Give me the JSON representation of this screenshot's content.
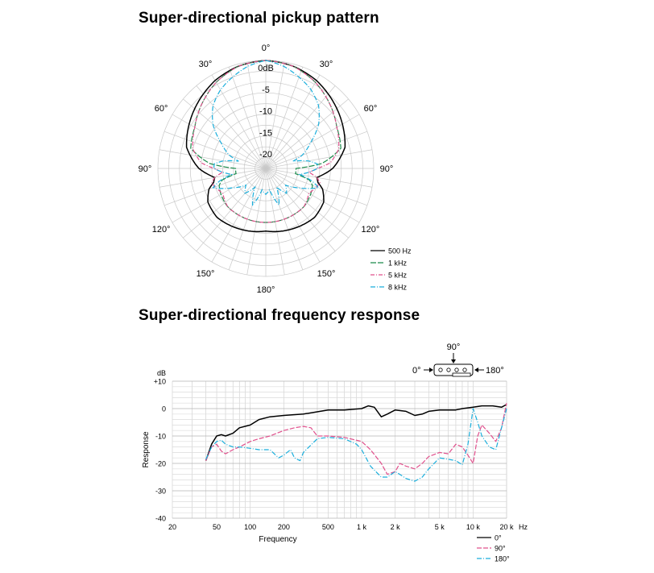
{
  "polar": {
    "title": "Super-directional pickup pattern",
    "angle_labels": [
      "0°",
      "30°",
      "60°",
      "90°",
      "120°",
      "150°",
      "180°",
      "150°",
      "120°",
      "90°",
      "60°",
      "30°"
    ],
    "ring_labels": [
      "0dB",
      "-5",
      "-10",
      "-15",
      "-20"
    ],
    "legend": [
      {
        "label": "500 Hz",
        "color": "#000000",
        "dash": ""
      },
      {
        "label": "1 kHz",
        "color": "#1a8a4a",
        "dash": "7 2"
      },
      {
        "label": "5 kHz",
        "color": "#e0508c",
        "dash": "5 2 1 2"
      },
      {
        "label": "8 kHz",
        "color": "#1aaedc",
        "dash": "6 2 1 2"
      }
    ]
  },
  "freq": {
    "title": "Super-directional frequency response",
    "unit_label": "dB",
    "ylabel": "Response",
    "xlabel": "Frequency",
    "x_unit": "Hz",
    "y_ticks": [
      "+10",
      "0",
      "-10",
      "-20",
      "-30",
      "-40"
    ],
    "x_ticks": [
      "20",
      "50",
      "100",
      "200",
      "500",
      "1 k",
      "2 k",
      "5 k",
      "10 k",
      "20 k"
    ],
    "mic_diagram": {
      "top_label": "90°",
      "left_label": "0°",
      "right_label": "180°"
    },
    "legend": [
      {
        "label": "0°",
        "color": "#000000",
        "dash": ""
      },
      {
        "label": "90°",
        "color": "#e0508c",
        "dash": "6 2"
      },
      {
        "label": "180°",
        "color": "#1aaedc",
        "dash": "6 2 1 2"
      }
    ]
  },
  "chart_data": [
    {
      "type": "polar",
      "title": "Super-directional pickup pattern",
      "angle_unit": "degrees",
      "radial_range_db": [
        -25,
        0
      ],
      "radial_ticks_db": [
        0,
        -5,
        -10,
        -15,
        -20
      ],
      "series": [
        {
          "name": "500 Hz",
          "angles": [
            0,
            15,
            30,
            45,
            60,
            75,
            90,
            100,
            105,
            110,
            120,
            135,
            150,
            165,
            180
          ],
          "db": [
            0,
            -0.5,
            -1.5,
            -3,
            -4.5,
            -6,
            -9.5,
            -13,
            -12.5,
            -11,
            -9.5,
            -9,
            -9.5,
            -10,
            -10.5
          ]
        },
        {
          "name": "1 kHz",
          "angles": [
            0,
            15,
            30,
            45,
            60,
            75,
            85,
            90,
            100,
            105,
            110,
            120,
            135,
            150,
            165,
            180
          ],
          "db": [
            0,
            -0.5,
            -2,
            -4,
            -6,
            -7,
            -12,
            -18,
            -18,
            -14.5,
            -13.5,
            -13,
            -12.5,
            -12.5,
            -12.5,
            -12.5
          ]
        },
        {
          "name": "5 kHz",
          "angles": [
            0,
            15,
            30,
            45,
            60,
            75,
            85,
            90,
            95,
            100,
            105,
            110,
            120,
            135,
            150,
            165,
            180
          ],
          "db": [
            0,
            -0.5,
            -2,
            -4,
            -6,
            -7.5,
            -10,
            -13,
            -15,
            -13,
            -12,
            -12.5,
            -13.5,
            -12.5,
            -12.5,
            -12.5,
            -12.5
          ]
        },
        {
          "name": "8 kHz",
          "angles": [
            0,
            10,
            20,
            30,
            40,
            50,
            60,
            70,
            75,
            80,
            85,
            90,
            95,
            100,
            105,
            110,
            115,
            120,
            130,
            140,
            150,
            160,
            170,
            180
          ],
          "db": [
            0,
            -1,
            -2.5,
            -4,
            -6,
            -9,
            -13,
            -16,
            -18.5,
            -15,
            -13,
            -13,
            -15,
            -17,
            -14,
            -12,
            -14,
            -16,
            -19,
            -17.5,
            -20,
            -16,
            -20,
            -19
          ]
        }
      ]
    },
    {
      "type": "line",
      "title": "Super-directional frequency response",
      "xlabel": "Frequency",
      "ylabel": "Response",
      "x_unit": "Hz",
      "y_unit": "dB",
      "x_scale": "log",
      "xlim": [
        20,
        20000
      ],
      "ylim": [
        -40,
        10
      ],
      "grid": true,
      "legend_position": "bottom-right",
      "series": [
        {
          "name": "0°",
          "x": [
            40,
            45,
            50,
            55,
            60,
            70,
            80,
            100,
            120,
            150,
            200,
            300,
            500,
            700,
            1000,
            1150,
            1300,
            1500,
            1700,
            2000,
            2500,
            3000,
            3500,
            4000,
            5000,
            6000,
            7000,
            8000,
            10000,
            12000,
            15000,
            18000,
            20000
          ],
          "y": [
            -19,
            -13,
            -10,
            -9.5,
            -10,
            -9,
            -7,
            -6,
            -4,
            -3,
            -2.5,
            -2,
            -0.5,
            -0.5,
            0,
            1,
            0.5,
            -3,
            -2,
            -0.5,
            -1,
            -2.5,
            -2,
            -1,
            -0.5,
            -0.5,
            -0.5,
            0,
            0.5,
            1,
            1,
            0.5,
            1.5
          ]
        },
        {
          "name": "90°",
          "x": [
            40,
            45,
            50,
            55,
            60,
            70,
            80,
            100,
            120,
            150,
            200,
            250,
            300,
            350,
            400,
            500,
            700,
            1000,
            1200,
            1500,
            1700,
            2000,
            2200,
            2500,
            3000,
            3500,
            4000,
            5000,
            6000,
            7000,
            8000,
            9000,
            10000,
            11000,
            12000,
            14000,
            16000,
            18000,
            20000
          ],
          "y": [
            -19,
            -14,
            -13,
            -15.5,
            -16.5,
            -15,
            -14,
            -12,
            -11,
            -10,
            -8,
            -7,
            -6.5,
            -7,
            -10,
            -10,
            -10.5,
            -12,
            -15,
            -20,
            -24,
            -23,
            -20,
            -21,
            -22,
            -20,
            -17.5,
            -16,
            -16.5,
            -13,
            -14,
            -17,
            -20,
            -10,
            -6,
            -9,
            -12,
            -7,
            2
          ]
        },
        {
          "name": "180°",
          "x": [
            40,
            45,
            50,
            55,
            60,
            70,
            80,
            100,
            120,
            150,
            180,
            200,
            230,
            250,
            280,
            300,
            400,
            500,
            700,
            900,
            1000,
            1200,
            1500,
            1700,
            2000,
            2200,
            2500,
            3000,
            3500,
            4000,
            5000,
            6000,
            7000,
            8000,
            9000,
            10000,
            11000,
            12000,
            14000,
            16000,
            18000,
            20000
          ],
          "y": [
            -18.5,
            -14,
            -12,
            -11.5,
            -13,
            -14,
            -14,
            -14.5,
            -15,
            -15,
            -18,
            -17,
            -15,
            -18,
            -19,
            -16,
            -11,
            -10.5,
            -11,
            -13,
            -15,
            -21,
            -25,
            -25,
            -23,
            -24,
            -25.5,
            -26.5,
            -25,
            -22,
            -18,
            -18.5,
            -19,
            -20.5,
            -13,
            0,
            -5,
            -10,
            -14,
            -15,
            -7,
            0
          ]
        }
      ]
    }
  ]
}
